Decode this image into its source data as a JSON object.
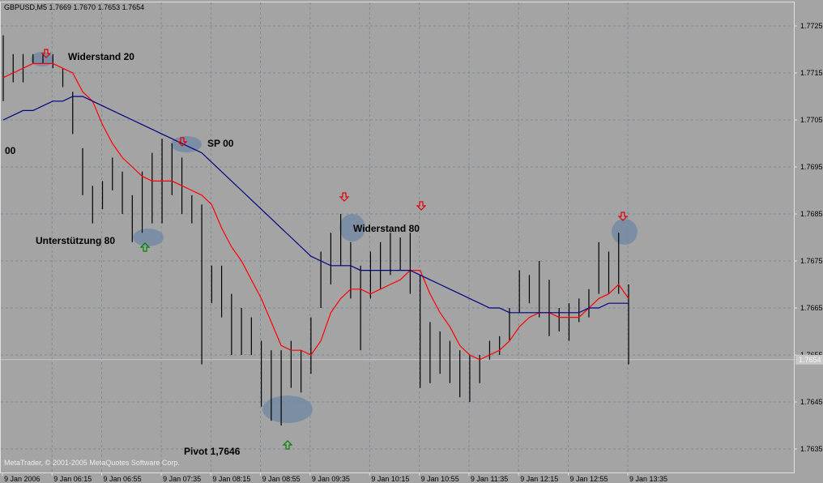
{
  "chart_data": {
    "type": "ohlc",
    "title": "GBPUSD,M5  1.7669 1.7670 1.7653 1.7654",
    "footer": "MetaTrader, © 2001-2005 MetaQuotes Software Corp.",
    "categories": [
      "9 Jan 2006",
      null,
      null,
      null,
      null,
      "9 Jan 06:15",
      null,
      null,
      null,
      null,
      "9 Jan 06:55",
      null,
      null,
      null,
      null,
      null,
      "9 Jan 07:35",
      null,
      null,
      null,
      null,
      "9 Jan 08:15",
      null,
      null,
      null,
      null,
      "9 Jan 08:55",
      null,
      null,
      null,
      null,
      "9 Jan 09:35",
      null,
      null,
      null,
      null,
      null,
      "9 Jan 10:15",
      null,
      null,
      null,
      null,
      "9 Jan 10:55",
      null,
      null,
      null,
      null,
      "9 Jan 11:35",
      null,
      null,
      null,
      null,
      "9 Jan 12:15",
      null,
      null,
      null,
      null,
      "9 Jan 12:55",
      null,
      null,
      null,
      null,
      null,
      "9 Jan 13:35"
    ],
    "high": [
      1.7723,
      1.7719,
      1.7719,
      1.7719,
      1.7719,
      1.7719,
      1.7716,
      1.7711,
      1.7699,
      1.7691,
      1.7692,
      1.7697,
      1.7694,
      1.7689,
      1.7694,
      1.7698,
      1.7701,
      1.77,
      1.7697,
      1.7689,
      1.7687,
      1.7674,
      1.7674,
      1.7668,
      1.7665,
      1.7663,
      1.7658,
      1.7656,
      1.7656,
      1.7658,
      1.7656,
      1.7663,
      1.7677,
      1.7681,
      1.7685,
      1.7679,
      1.7674,
      1.7677,
      1.7679,
      1.7681,
      1.768,
      1.7681,
      1.7672,
      1.7662,
      1.766,
      1.7658,
      1.7656,
      1.7655,
      1.7655,
      1.7658,
      1.7659,
      1.7665,
      1.7673,
      1.7672,
      1.7675,
      1.7671,
      1.7665,
      1.7666,
      1.7667,
      1.7669,
      1.7679,
      1.7677,
      1.7681,
      1.767
    ],
    "low": [
      1.7709,
      1.7713,
      1.7713,
      1.7717,
      1.7717,
      1.7716,
      1.7712,
      1.7702,
      1.7689,
      1.7683,
      1.7686,
      1.769,
      1.7685,
      1.7679,
      1.7681,
      1.7683,
      1.7683,
      1.7689,
      1.7685,
      1.7683,
      1.7653,
      1.7666,
      1.7663,
      1.7655,
      1.7655,
      1.7655,
      1.7644,
      1.7641,
      1.764,
      1.7648,
      1.7647,
      1.7651,
      1.7665,
      1.767,
      1.7674,
      1.7667,
      1.7656,
      1.7667,
      1.7669,
      1.7672,
      1.7673,
      1.7668,
      1.7648,
      1.7649,
      1.7651,
      1.7649,
      1.7646,
      1.7645,
      1.7649,
      1.7654,
      1.7655,
      1.7658,
      1.7664,
      1.7666,
      1.7663,
      1.7659,
      1.766,
      1.7658,
      1.7662,
      1.7663,
      1.7668,
      1.7668,
      1.7668,
      1.7653
    ],
    "bar_color": "#000000",
    "lines": [
      {
        "color": "#ff0000",
        "values": [
          1.7714,
          1.7715,
          1.7716,
          1.7717,
          1.7717,
          1.7717,
          1.7716,
          1.7715,
          1.7711,
          1.7709,
          1.7704,
          1.77,
          1.7697,
          1.7695,
          1.7693,
          1.7692,
          1.7692,
          1.7692,
          1.7691,
          1.769,
          1.7689,
          1.7687,
          1.7682,
          1.7678,
          1.7675,
          1.7671,
          1.7667,
          1.7662,
          1.7657,
          1.7656,
          1.7656,
          1.7655,
          1.7658,
          1.7664,
          1.7667,
          1.7669,
          1.7669,
          1.7668,
          1.7669,
          1.767,
          1.7671,
          1.7673,
          1.7673,
          1.7668,
          1.7664,
          1.7661,
          1.7657,
          1.7655,
          1.7654,
          1.7655,
          1.7656,
          1.7658,
          1.7661,
          1.7663,
          1.7664,
          1.7664,
          1.7663,
          1.7663,
          1.7663,
          1.7665,
          1.7667,
          1.7668,
          1.767,
          1.7667
        ]
      },
      {
        "color": "#000080",
        "values": [
          1.7705,
          1.7706,
          1.7707,
          1.7707,
          1.7708,
          1.7709,
          1.7709,
          1.771,
          1.771,
          1.7709,
          1.7708,
          1.7707,
          1.7706,
          1.7705,
          1.7704,
          1.7703,
          1.7702,
          1.7701,
          1.77,
          1.7699,
          1.7698,
          1.7696,
          1.7694,
          1.7692,
          1.769,
          1.7688,
          1.7686,
          1.7684,
          1.7682,
          1.768,
          1.7678,
          1.7676,
          1.7675,
          1.7674,
          1.7674,
          1.7674,
          1.7673,
          1.7673,
          1.7673,
          1.7673,
          1.7673,
          1.7673,
          1.7672,
          1.7671,
          1.767,
          1.7669,
          1.7668,
          1.7667,
          1.7666,
          1.7665,
          1.7665,
          1.7664,
          1.7664,
          1.7664,
          1.7664,
          1.7664,
          1.7664,
          1.7664,
          1.7664,
          1.7665,
          1.7665,
          1.7666,
          1.7666,
          1.7666
        ]
      }
    ],
    "ylim": [
      1.763,
      1.773
    ],
    "yticks": [
      1.7635,
      1.7645,
      1.7655,
      1.7665,
      1.7675,
      1.7685,
      1.7695,
      1.7705,
      1.7715,
      1.7725
    ],
    "last_price": 1.7654,
    "grid": true,
    "annotations": [
      "Widerstand 20",
      "SP 00",
      "00",
      "Unterstützung 80",
      "Widerstand 80",
      "Pivot 1,7646"
    ]
  }
}
